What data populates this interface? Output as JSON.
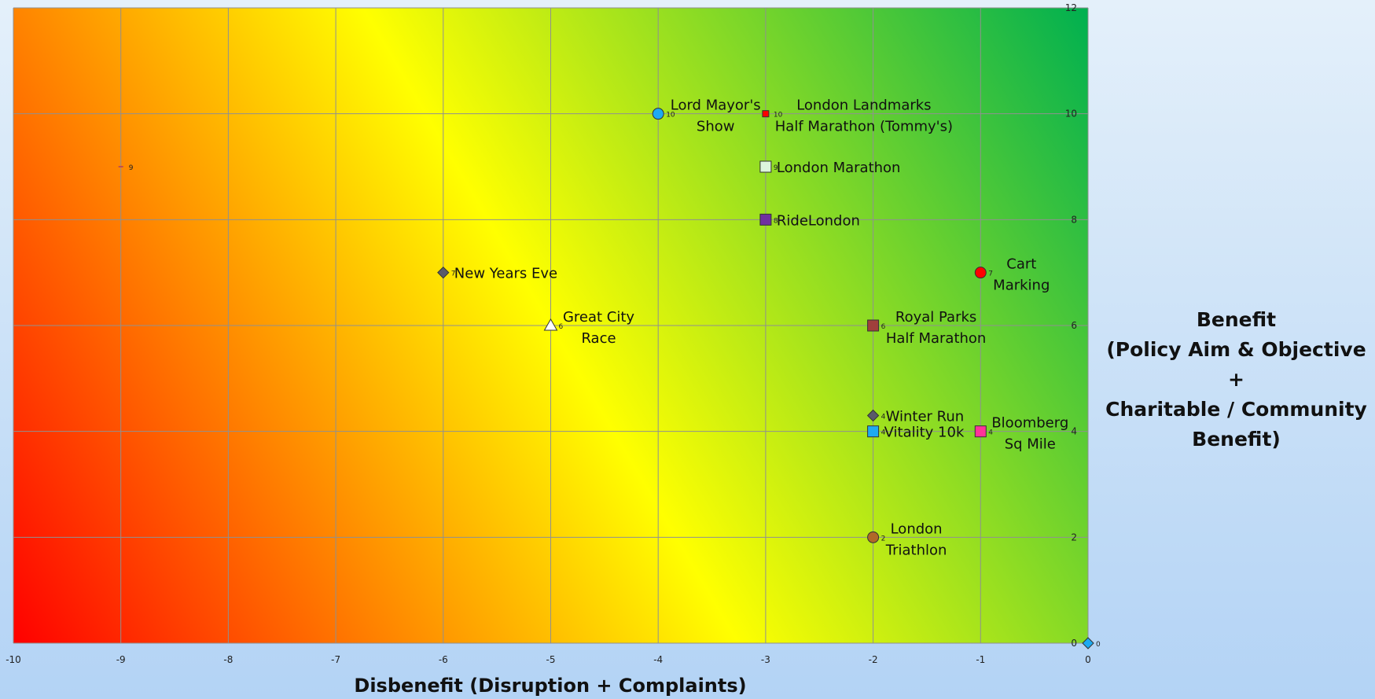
{
  "chart_data": {
    "type": "scatter",
    "xlabel": "Disbenefit (Disruption + Complaints)",
    "ylabel": [
      "Benefit",
      "(Policy Aim & Objective +",
      "Charitable / Community",
      "Benefit)"
    ],
    "xlim": [
      -10,
      0
    ],
    "ylim": [
      0,
      12
    ],
    "x_ticks": [
      -10,
      -9,
      -8,
      -7,
      -6,
      -5,
      -4,
      -3,
      -2,
      -1,
      0
    ],
    "y_ticks": [
      0,
      2,
      4,
      6,
      8,
      10,
      12
    ],
    "grid": true,
    "background": "diagonal gradient red (bottom-left) to yellow to green (top-right)",
    "colors": {
      "red": "#ff0000",
      "yellow": "#ffff00",
      "green": "#00b050"
    },
    "points": [
      {
        "label": [
          "Lord Mayor's",
          "Show"
        ],
        "x": -4,
        "y": 10,
        "value_label": "10",
        "marker": "circle",
        "color": "#1eaaf1"
      },
      {
        "label": [
          "London Landmarks",
          "Half Marathon (Tommy's)"
        ],
        "x": -3,
        "y": 10,
        "value_label": "10",
        "marker": "square-small",
        "color": "#ff0000"
      },
      {
        "label": [
          "London Marathon"
        ],
        "x": -3,
        "y": 9,
        "value_label": "9",
        "marker": "square",
        "color": "#dcf5dc"
      },
      {
        "label": [
          ""
        ],
        "x": -9,
        "y": 9,
        "value_label": "9",
        "marker": "dash",
        "color": "#c0504d"
      },
      {
        "label": [
          "RideLondon"
        ],
        "x": -3,
        "y": 8,
        "value_label": "8",
        "marker": "square",
        "color": "#7030a0"
      },
      {
        "label": [
          "New Years Eve"
        ],
        "x": -6,
        "y": 7,
        "value_label": "7",
        "marker": "diamond",
        "color": "#5a5a6a"
      },
      {
        "label": [
          "Cart",
          "Marking"
        ],
        "x": -1,
        "y": 7,
        "value_label": "7",
        "marker": "circle",
        "color": "#ff0000"
      },
      {
        "label": [
          "Great City",
          "Race"
        ],
        "x": -5,
        "y": 6,
        "value_label": "6",
        "marker": "triangle",
        "color": "#ffffff"
      },
      {
        "label": [
          "Royal Parks",
          "Half Marathon"
        ],
        "x": -2,
        "y": 6,
        "value_label": "6",
        "marker": "square",
        "color": "#a0403c"
      },
      {
        "label": [
          "Winter Run"
        ],
        "x": -2,
        "y": 4.3,
        "value_label": "4",
        "marker": "diamond",
        "color": "#5a5a6a"
      },
      {
        "label": [
          "Vitality 10k"
        ],
        "x": -2,
        "y": 4,
        "value_label": "4",
        "marker": "square",
        "color": "#1eaaf1"
      },
      {
        "label": [
          "Bloomberg",
          "Sq Mile"
        ],
        "x": -1,
        "y": 4,
        "value_label": "4",
        "marker": "square",
        "color": "#ff3399"
      },
      {
        "label": [
          "London",
          "Triathlon"
        ],
        "x": -2,
        "y": 2,
        "value_label": "2",
        "marker": "circle",
        "color": "#b06828"
      },
      {
        "label": [
          ""
        ],
        "x": 0,
        "y": 0,
        "value_label": "0",
        "marker": "diamond",
        "color": "#1eaaf1"
      }
    ]
  }
}
